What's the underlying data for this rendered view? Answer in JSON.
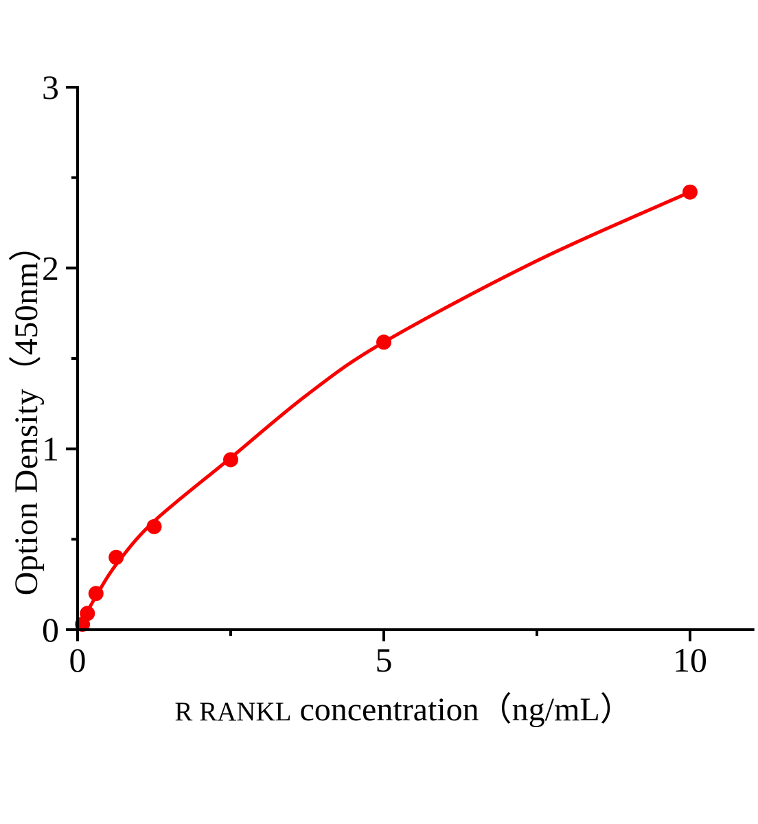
{
  "chart_data": {
    "type": "scatter",
    "title": "",
    "xlabel": "R RANKL concentration（ng/mL）",
    "xlabel_prefix": "R RANKL",
    "xlabel_main": "concentration（ng/mL）",
    "ylabel": "Option Density（450nm）",
    "xlim": [
      0,
      11.05
    ],
    "ylim": [
      0,
      3
    ],
    "x_major_ticks": {
      "values": [
        0,
        5,
        10
      ],
      "labels": [
        "0",
        "5",
        "10"
      ]
    },
    "x_minor_ticks": [
      2.5,
      7.5
    ],
    "y_major_ticks": {
      "values": [
        0,
        1,
        2,
        3
      ],
      "labels": [
        "0",
        "1",
        "2",
        "3"
      ]
    },
    "y_minor_ticks": [
      0.5,
      1.5,
      2.5
    ],
    "grid": false,
    "legend": "none",
    "colors": {
      "curve": "#f80000",
      "point": "#f80000",
      "axis": "#000000",
      "text": "#000000"
    },
    "points": [
      [
        0.08,
        0.03
      ],
      [
        0.16,
        0.09
      ],
      [
        0.3,
        0.2
      ],
      [
        0.63,
        0.4
      ],
      [
        1.25,
        0.57
      ],
      [
        2.5,
        0.94
      ],
      [
        5,
        1.59
      ],
      [
        10,
        2.42
      ]
    ],
    "curve": [
      [
        0,
        0
      ],
      [
        0.16,
        0.1
      ],
      [
        0.31,
        0.19
      ],
      [
        0.63,
        0.36
      ],
      [
        1.25,
        0.6
      ],
      [
        2.5,
        0.95
      ],
      [
        3.75,
        1.3
      ],
      [
        5,
        1.59
      ],
      [
        7.5,
        2.04
      ],
      [
        10,
        2.42
      ]
    ]
  }
}
